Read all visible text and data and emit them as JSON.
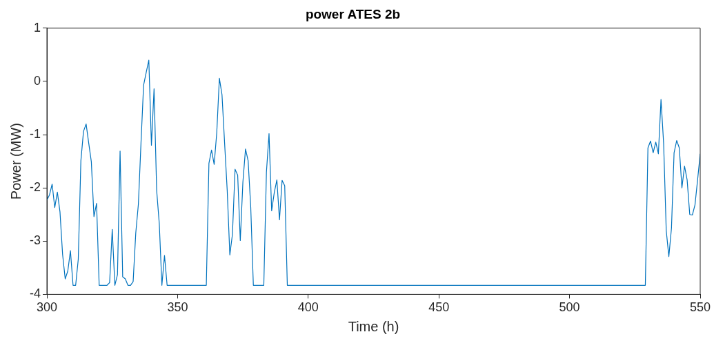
{
  "chart_data": {
    "type": "line",
    "title": "power ATES 2b",
    "xlabel": "Time (h)",
    "ylabel": "Power (MW)",
    "x": [
      300,
      301,
      302,
      303,
      304,
      305,
      306,
      307,
      308,
      309,
      310,
      311,
      312,
      313,
      314,
      315,
      316,
      317,
      318,
      319,
      320,
      321,
      322,
      323,
      324,
      325,
      326,
      327,
      328,
      329,
      330,
      331,
      332,
      333,
      334,
      335,
      336,
      337,
      338,
      339,
      340,
      341,
      342,
      343,
      344,
      345,
      346,
      361,
      362,
      363,
      364,
      365,
      366,
      367,
      368,
      369,
      370,
      371,
      372,
      373,
      374,
      375,
      376,
      377,
      378,
      379,
      383,
      384,
      385,
      386,
      387,
      388,
      389,
      390,
      391,
      392,
      529,
      530,
      531,
      532,
      533,
      534,
      535,
      536,
      537,
      538,
      539,
      540,
      541,
      542,
      543,
      544,
      545,
      546,
      547,
      548,
      549,
      550
    ],
    "series": [
      {
        "color": "#0072bd",
        "values": [
          -2.23,
          -2.13,
          -1.93,
          -2.37,
          -2.08,
          -2.45,
          -3.25,
          -3.71,
          -3.56,
          -3.18,
          -3.83,
          -3.83,
          -3.34,
          -1.49,
          -0.94,
          -0.8,
          -1.16,
          -1.51,
          -2.54,
          -2.29,
          -3.83,
          -3.83,
          -3.83,
          -3.83,
          -3.78,
          -2.78,
          -3.83,
          -3.63,
          -1.31,
          -3.67,
          -3.71,
          -3.83,
          -3.83,
          -3.76,
          -2.85,
          -2.31,
          -1.16,
          -0.07,
          0.17,
          0.4,
          -1.2,
          -0.14,
          -2.05,
          -2.67,
          -3.83,
          -3.27,
          -3.83,
          -3.83,
          -1.54,
          -1.29,
          -1.56,
          -0.96,
          0.06,
          -0.25,
          -1.16,
          -2.05,
          -3.26,
          -2.87,
          -1.65,
          -1.76,
          -2.99,
          -1.89,
          -1.27,
          -1.49,
          -2.36,
          -3.83,
          -3.83,
          -1.71,
          -0.98,
          -2.43,
          -2.09,
          -1.85,
          -2.6,
          -1.86,
          -1.96,
          -3.83,
          -3.83,
          -1.25,
          -1.12,
          -1.34,
          -1.14,
          -1.36,
          -0.34,
          -1.16,
          -2.8,
          -3.29,
          -2.76,
          -1.34,
          -1.11,
          -1.25,
          -2,
          -1.59,
          -1.85,
          -2.5,
          -2.51,
          -2.32,
          -1.85,
          -1.36
        ]
      }
    ],
    "xlim": [
      300,
      550
    ],
    "xticks": [
      300,
      350,
      400,
      450,
      500,
      550
    ],
    "ylim": [
      -4,
      1
    ],
    "yticks": [
      -4,
      -3,
      -2,
      -1,
      0,
      1
    ],
    "grid": false,
    "legend": false,
    "marker": "none",
    "line_style": "solid"
  }
}
